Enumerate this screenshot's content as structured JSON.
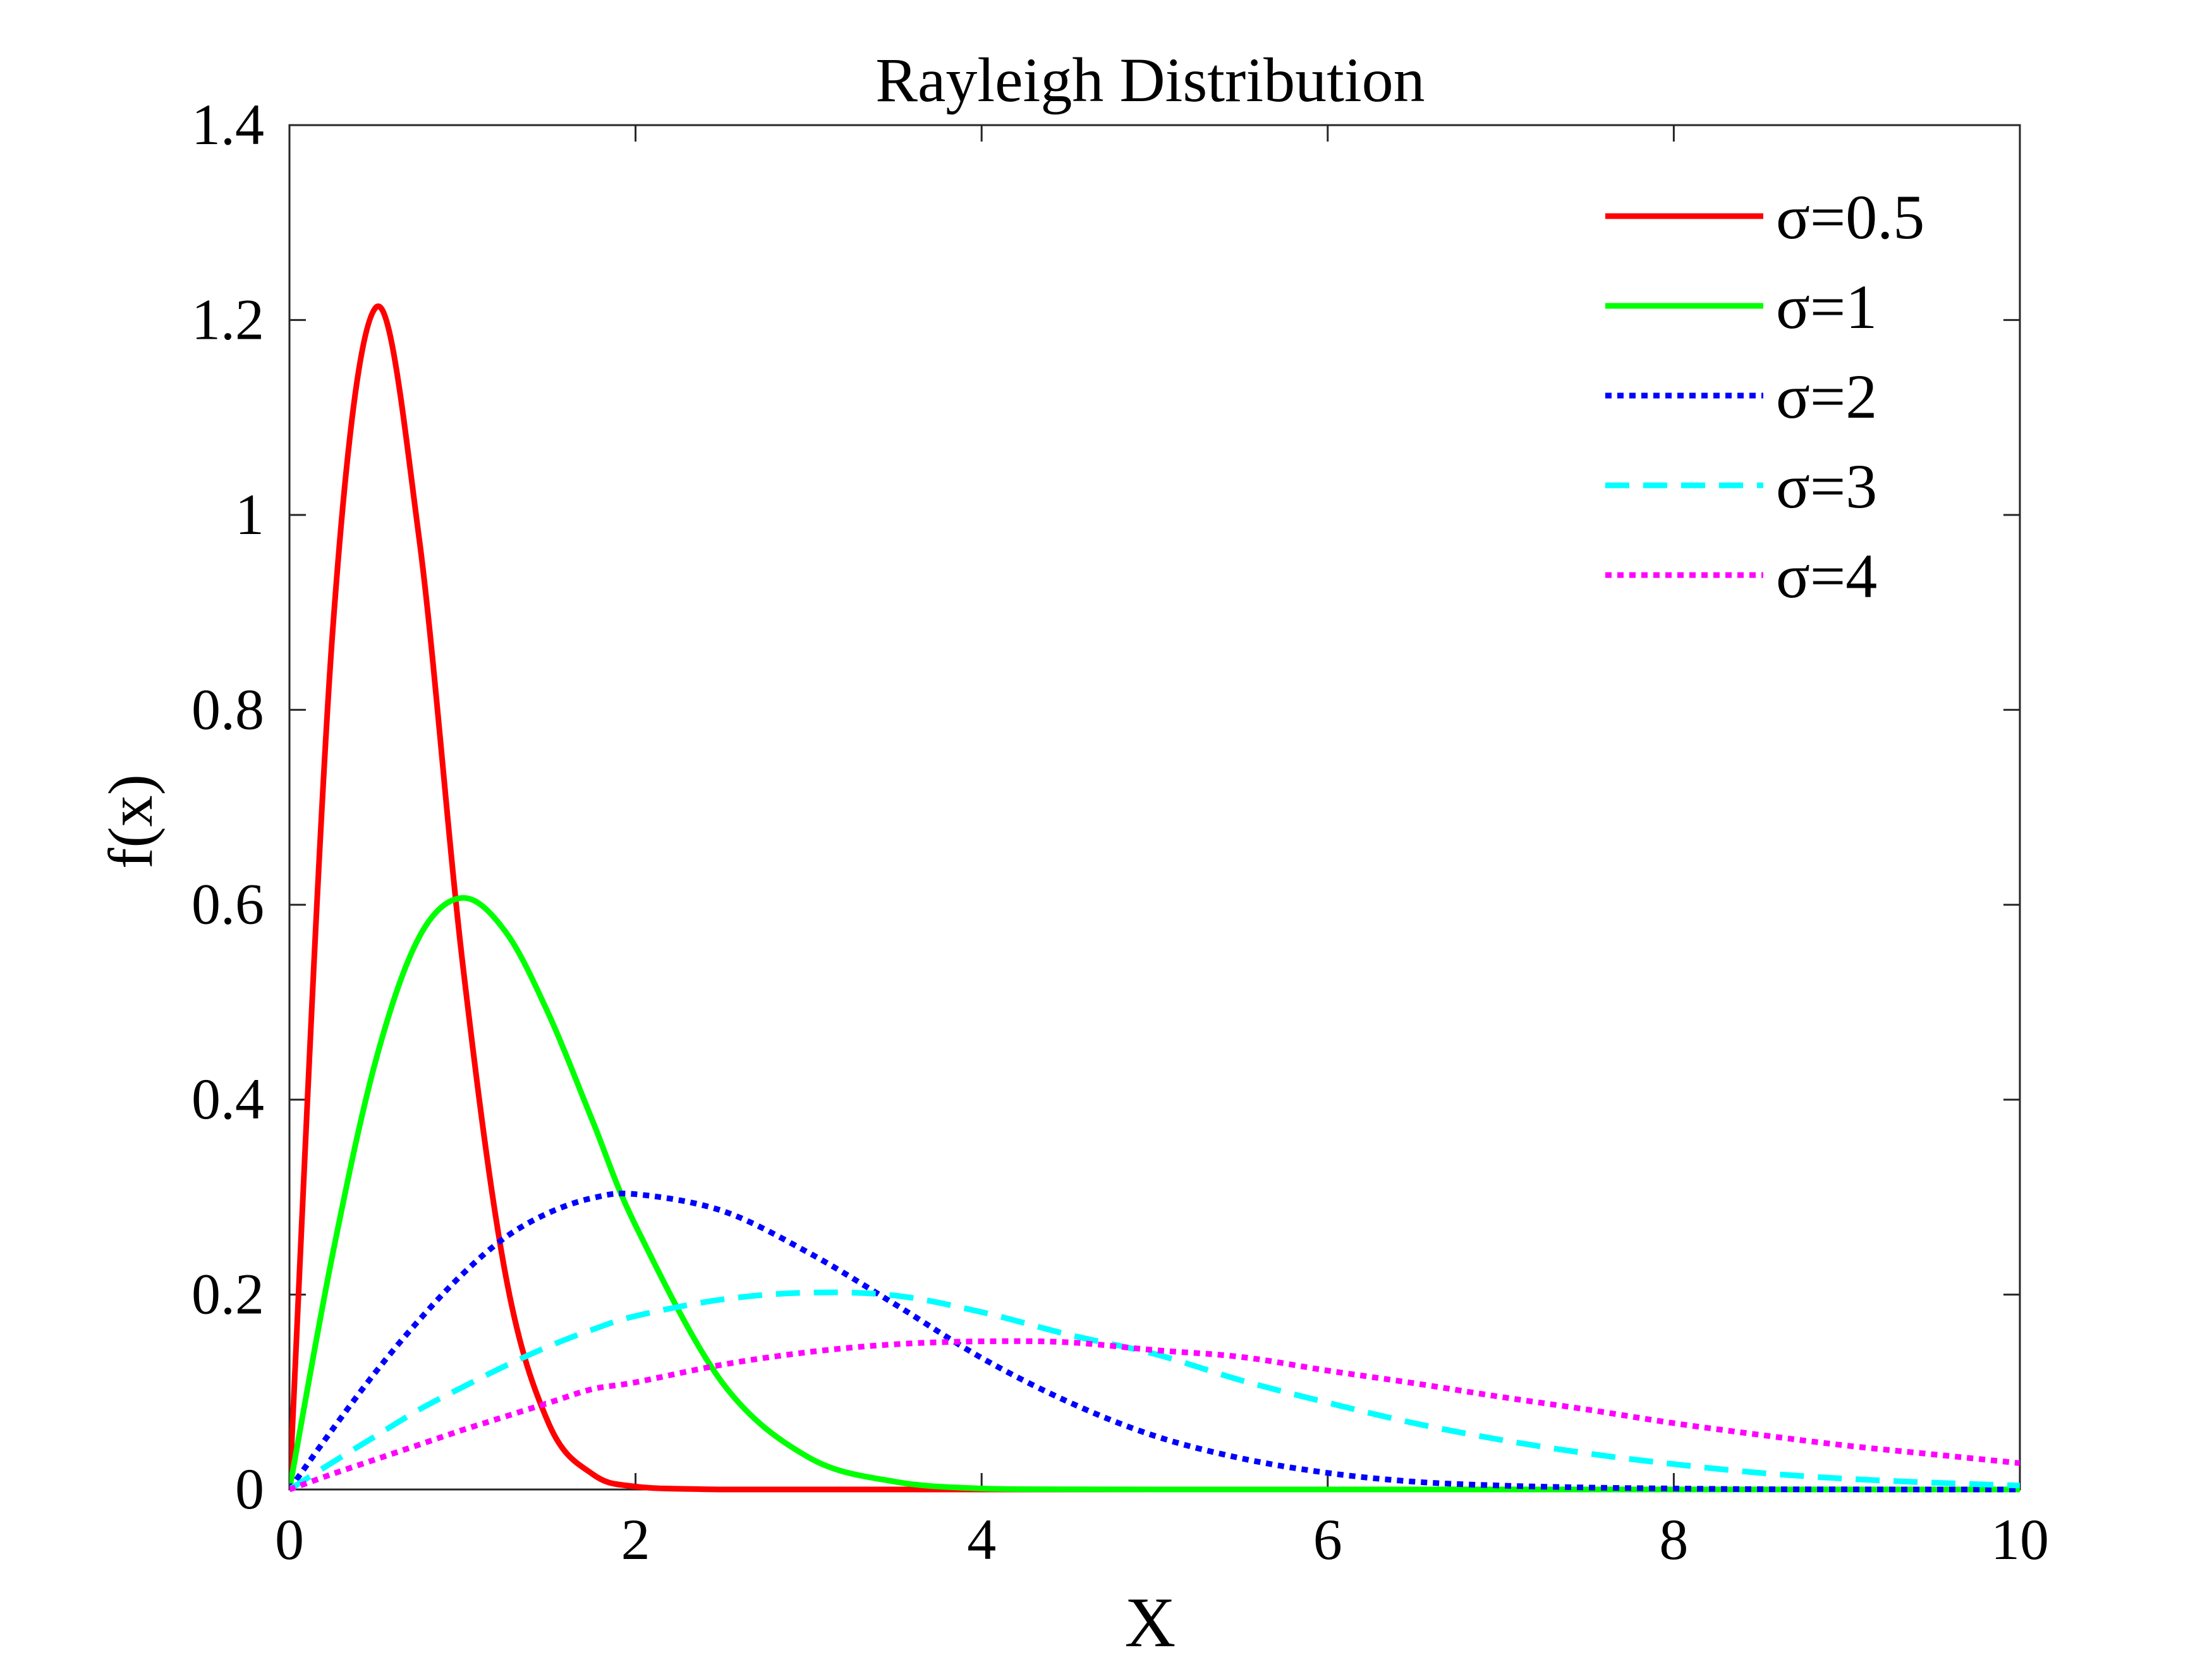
{
  "chart_data": {
    "type": "line",
    "title": "Rayleigh Distribution",
    "xlabel": "X",
    "ylabel": "f(x)",
    "xlim": [
      0,
      10
    ],
    "ylim": [
      0,
      1.4
    ],
    "xticks": [
      0,
      2,
      4,
      6,
      8,
      10
    ],
    "xtick_labels": [
      "0",
      "2",
      "4",
      "6",
      "8",
      "10"
    ],
    "yticks": [
      0,
      0.2,
      0.4,
      0.6,
      0.8,
      1,
      1.2,
      1.4
    ],
    "ytick_labels": [
      "0",
      "0.2",
      "0.4",
      "0.6",
      "0.8",
      "1",
      "1.2",
      "1.4"
    ],
    "grid": false,
    "legend_position": "top-right",
    "x": [
      0,
      0.25,
      0.5,
      0.75,
      1,
      1.25,
      1.5,
      1.75,
      2,
      2.5,
      3,
      3.5,
      4,
      4.5,
      5,
      5.5,
      6,
      6.5,
      7,
      7.5,
      8,
      8.5,
      9,
      9.5,
      10
    ],
    "series": [
      {
        "name": "σ=0.5",
        "color": "#ff0000",
        "dash": "solid",
        "values": [
          0,
          0.882,
          1.213,
          0.975,
          0.541,
          0.219,
          0.067,
          0.016,
          0.003,
          0.0,
          0,
          0,
          0,
          0,
          0,
          0,
          0,
          0,
          0,
          0,
          0,
          0,
          0,
          0,
          0
        ]
      },
      {
        "name": "σ=1",
        "color": "#00ff00",
        "dash": "solid",
        "values": [
          0,
          0.242,
          0.441,
          0.567,
          0.607,
          0.572,
          0.487,
          0.379,
          0.271,
          0.11,
          0.033,
          0.008,
          0.001,
          0.0002,
          0,
          0,
          0,
          0,
          0,
          0,
          0,
          0,
          0,
          0,
          0
        ]
      },
      {
        "name": "σ=2",
        "color": "#0000ff",
        "dash": "dotted",
        "values": [
          0,
          0.062,
          0.121,
          0.174,
          0.221,
          0.259,
          0.284,
          0.299,
          0.303,
          0.286,
          0.243,
          0.19,
          0.135,
          0.09,
          0.055,
          0.032,
          0.017,
          0.008,
          0.004,
          0.002,
          0.001,
          0.0003,
          0.0001,
          0,
          0
        ]
      },
      {
        "name": "σ=3",
        "color": "#00ffff",
        "dash": "dashed",
        "values": [
          0,
          0.028,
          0.055,
          0.082,
          0.105,
          0.127,
          0.147,
          0.164,
          0.178,
          0.195,
          0.202,
          0.199,
          0.182,
          0.159,
          0.139,
          0.112,
          0.089,
          0.068,
          0.051,
          0.037,
          0.026,
          0.017,
          0.011,
          0.007,
          0.004
        ]
      },
      {
        "name": "σ=4",
        "color": "#ff00ff",
        "dash": "dotted",
        "values": [
          0,
          0.016,
          0.031,
          0.046,
          0.061,
          0.075,
          0.089,
          0.103,
          0.11,
          0.128,
          0.141,
          0.149,
          0.152,
          0.151,
          0.143,
          0.136,
          0.122,
          0.109,
          0.095,
          0.082,
          0.068,
          0.056,
          0.045,
          0.036,
          0.027
        ]
      }
    ]
  }
}
